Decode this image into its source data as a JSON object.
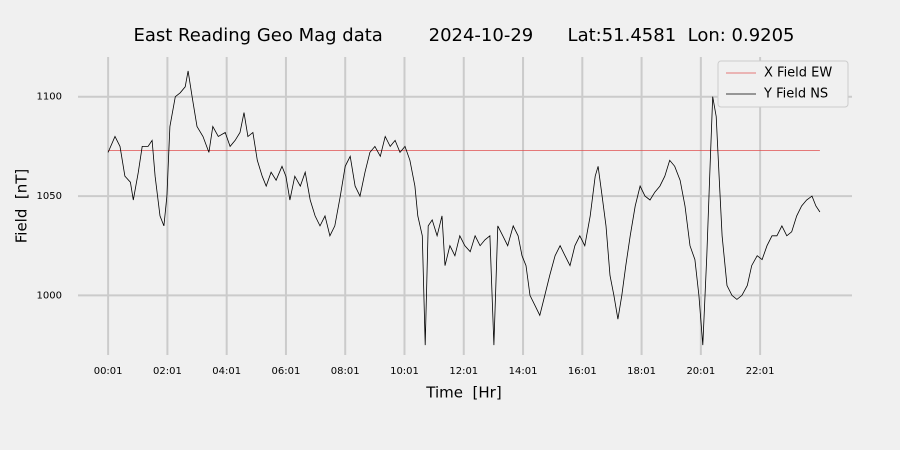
{
  "chart_data": {
    "type": "line",
    "title": "East Reading Geo Mag data        2024-10-29      Lat:51.4581  Lon: 0.9205",
    "x_label": "Time  [Hr]",
    "y_label": "Field  [nT]",
    "xlim": [
      -60,
      1507
    ],
    "ylim": [
      970,
      1120
    ],
    "xticks": [
      {
        "value": 1,
        "label": "00:01"
      },
      {
        "value": 121,
        "label": "02:01"
      },
      {
        "value": 241,
        "label": "04:01"
      },
      {
        "value": 361,
        "label": "06:01"
      },
      {
        "value": 481,
        "label": "08:01"
      },
      {
        "value": 601,
        "label": "10:01"
      },
      {
        "value": 721,
        "label": "12:01"
      },
      {
        "value": 841,
        "label": "14:01"
      },
      {
        "value": 961,
        "label": "16:01"
      },
      {
        "value": 1081,
        "label": "18:01"
      },
      {
        "value": 1201,
        "label": "20:01"
      },
      {
        "value": 1321,
        "label": "22:01"
      }
    ],
    "yticks": [
      1000,
      1050,
      1100
    ],
    "grid": true,
    "legend": "upper right",
    "series": [
      {
        "name": "X Field EW",
        "color": "#e05050",
        "x": [
          1,
          1442
        ],
        "values": [
          1073,
          1073
        ]
      },
      {
        "name": "Y Field NS",
        "color": "#000000",
        "x": [
          1,
          15,
          25,
          35,
          46,
          52,
          62,
          70,
          82,
          90,
          96,
          106,
          114,
          120,
          126,
          137,
          147,
          157,
          163,
          171,
          181,
          193,
          205,
          213,
          224,
          238,
          248,
          258,
          268,
          276,
          284,
          294,
          303,
          313,
          321,
          331,
          341,
          353,
          361,
          369,
          379,
          390,
          400,
          410,
          420,
          430,
          440,
          450,
          460,
          471,
          481,
          491,
          501,
          511,
          521,
          531,
          541,
          552,
          562,
          572,
          582,
          592,
          602,
          612,
          622,
          628,
          637,
          643,
          649,
          657,
          667,
          677,
          683,
          693,
          703,
          713,
          723,
          734,
          744,
          754,
          764,
          774,
          782,
          790,
          800,
          810,
          821,
          831,
          839,
          847,
          855,
          865,
          875,
          885,
          895,
          906,
          916,
          926,
          936,
          946,
          956,
          966,
          977,
          987,
          993,
          1001,
          1009,
          1017,
          1025,
          1033,
          1041,
          1049,
          1058,
          1068,
          1078,
          1088,
          1098,
          1108,
          1118,
          1128,
          1138,
          1148,
          1159,
          1169,
          1179,
          1189,
          1197,
          1205,
          1213,
          1219,
          1225,
          1232,
          1238,
          1244,
          1254,
          1264,
          1274,
          1284,
          1295,
          1304,
          1315,
          1325,
          1335,
          1345,
          1355,
          1365,
          1375,
          1385,
          1395,
          1405,
          1415,
          1426,
          1434,
          1442
        ],
        "values": [
          1072,
          1080,
          1075,
          1060,
          1057,
          1048,
          1062,
          1075,
          1075,
          1078,
          1060,
          1040,
          1035,
          1050,
          1085,
          1100,
          1102,
          1105,
          1113,
          1100,
          1085,
          1080,
          1072,
          1085,
          1080,
          1082,
          1075,
          1078,
          1082,
          1092,
          1080,
          1082,
          1068,
          1060,
          1055,
          1062,
          1058,
          1065,
          1060,
          1048,
          1060,
          1055,
          1062,
          1048,
          1040,
          1035,
          1040,
          1030,
          1035,
          1050,
          1065,
          1070,
          1055,
          1050,
          1062,
          1072,
          1075,
          1070,
          1080,
          1075,
          1078,
          1072,
          1075,
          1068,
          1055,
          1040,
          1030,
          975,
          1035,
          1038,
          1030,
          1040,
          1015,
          1025,
          1020,
          1030,
          1025,
          1022,
          1030,
          1025,
          1028,
          1030,
          975,
          1035,
          1030,
          1025,
          1035,
          1030,
          1020,
          1015,
          1000,
          995,
          990,
          1000,
          1010,
          1020,
          1025,
          1020,
          1015,
          1025,
          1030,
          1025,
          1040,
          1060,
          1065,
          1050,
          1035,
          1010,
          1000,
          988,
          1000,
          1015,
          1030,
          1045,
          1055,
          1050,
          1048,
          1052,
          1055,
          1060,
          1068,
          1065,
          1058,
          1045,
          1025,
          1018,
          1000,
          975,
          1020,
          1060,
          1100,
          1090,
          1060,
          1030,
          1005,
          1000,
          998,
          1000,
          1005,
          1015,
          1020,
          1018,
          1025,
          1030,
          1030,
          1035,
          1030,
          1032,
          1040,
          1045,
          1048,
          1050,
          1045,
          1042
        ]
      }
    ]
  }
}
